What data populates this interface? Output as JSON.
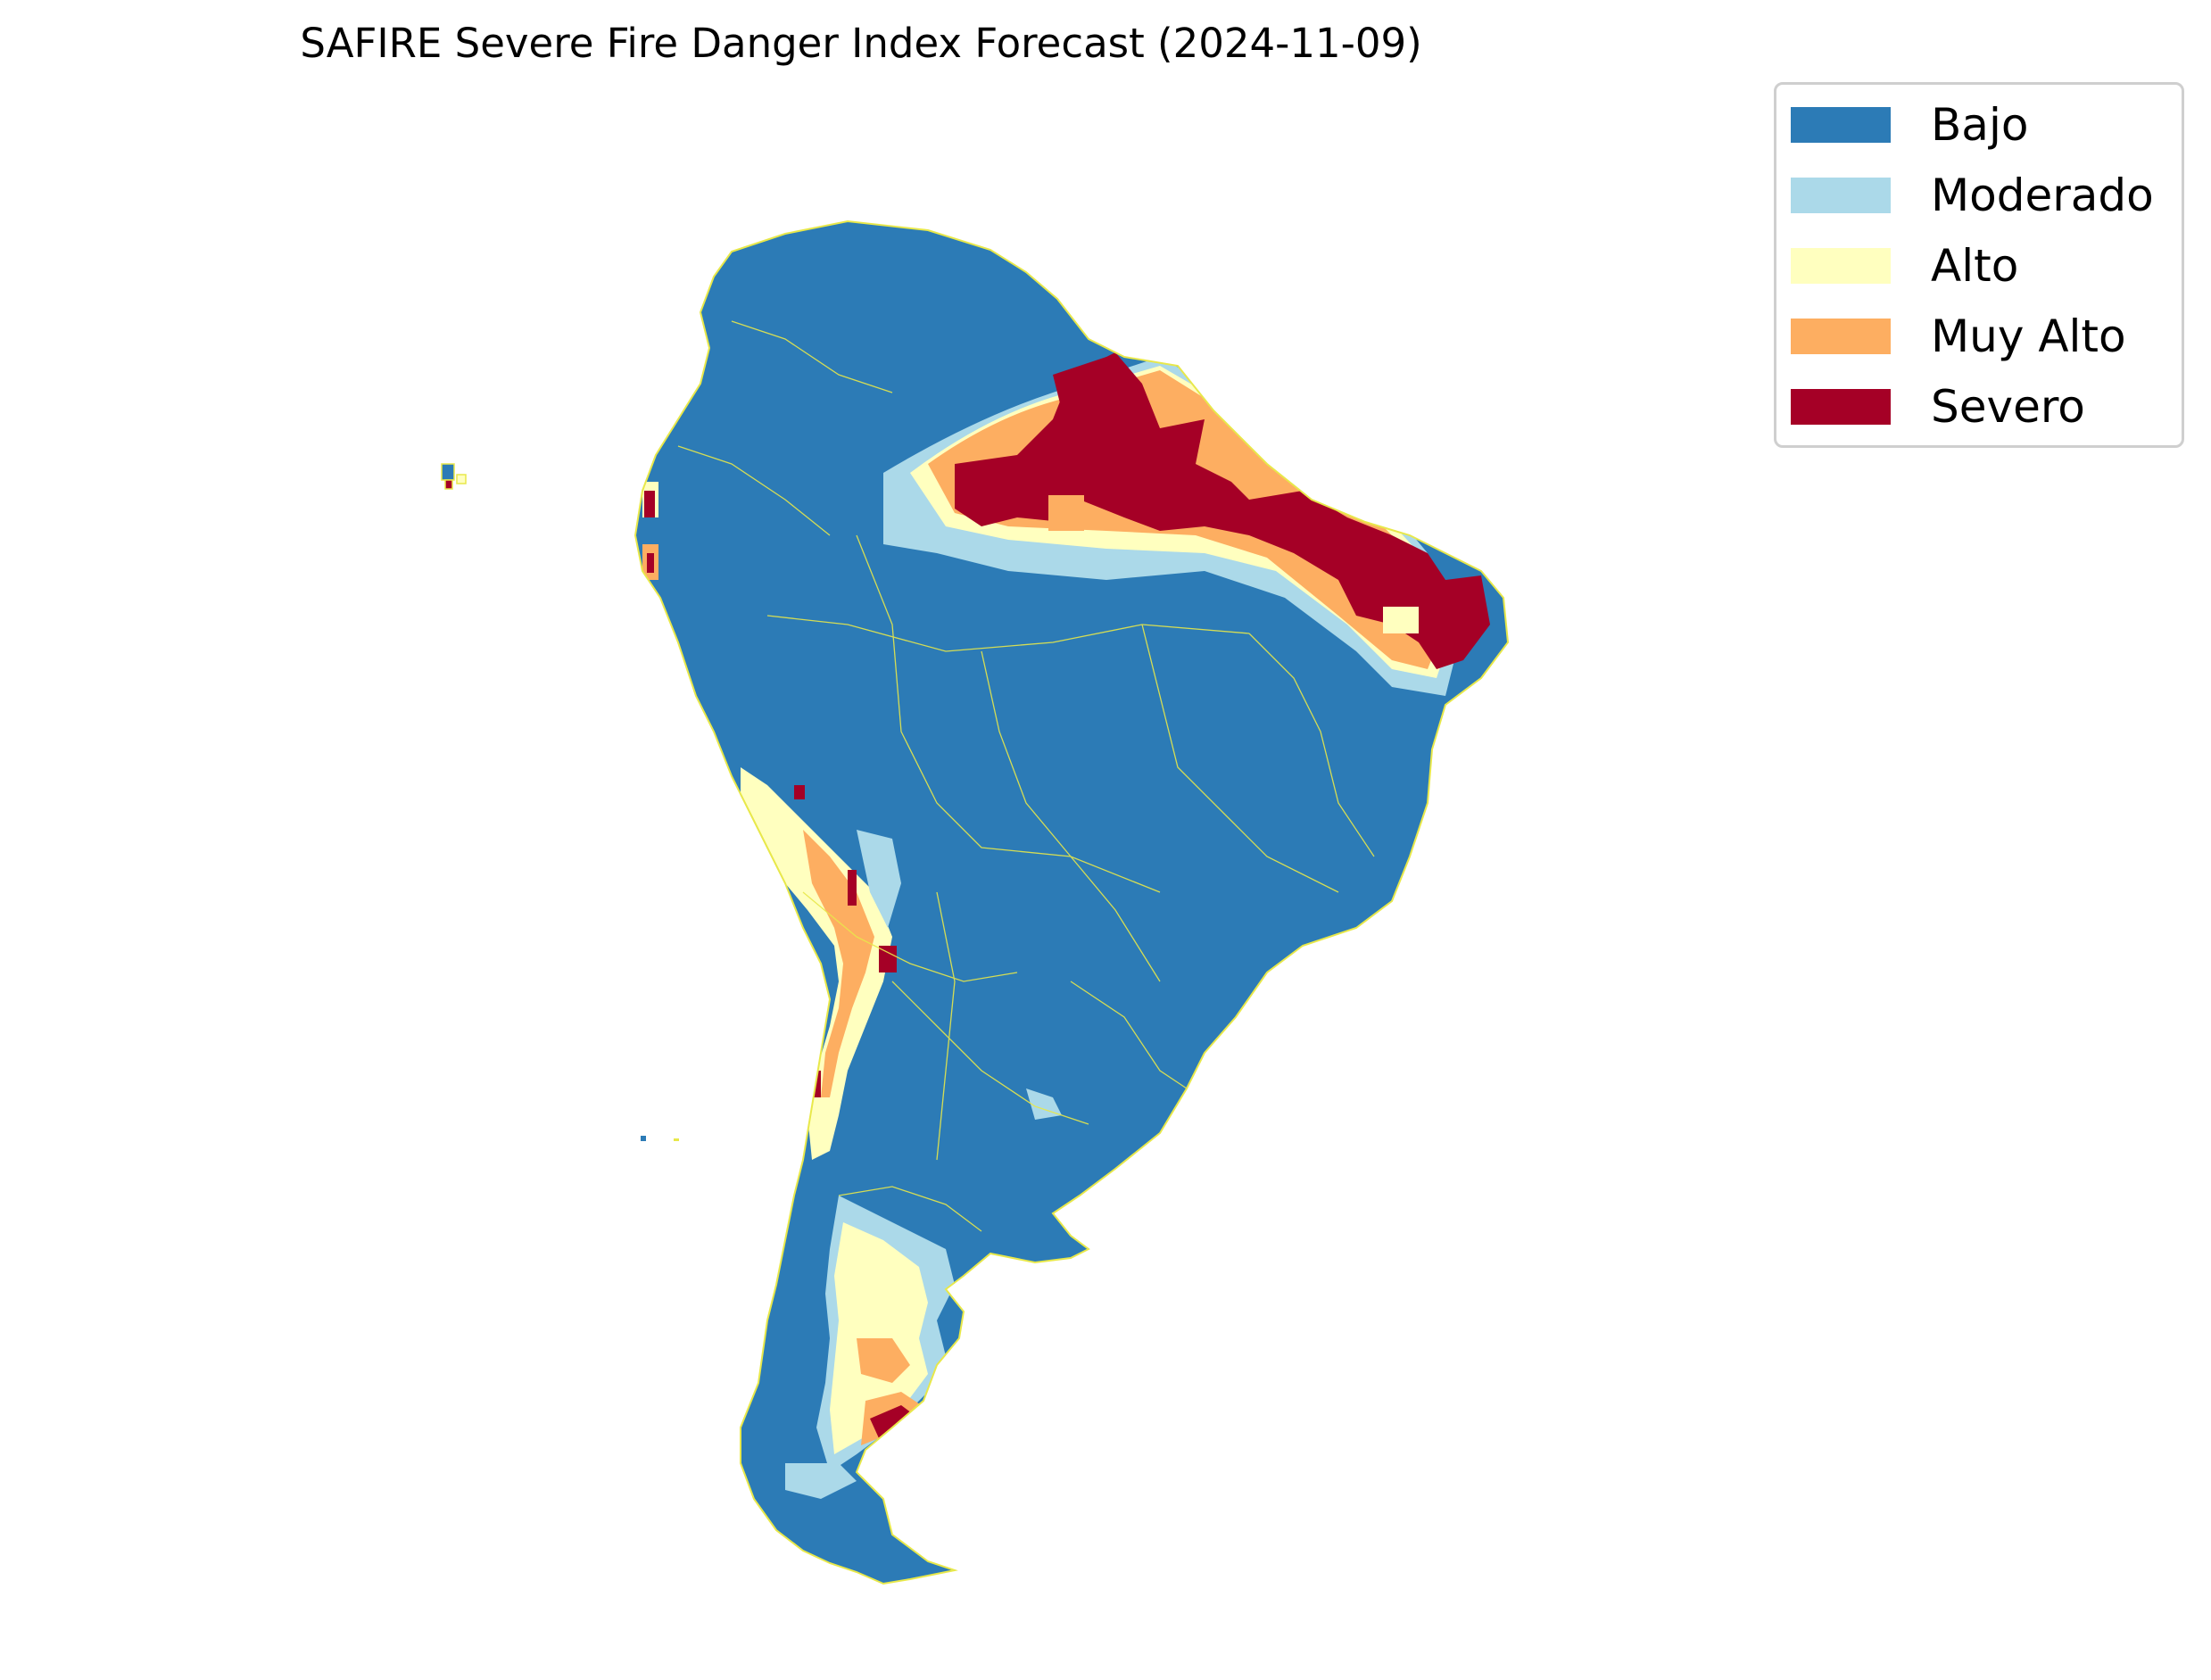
{
  "title": "SAFIRE Severe Fire Danger Index Forecast (2024-11-09)",
  "legend": {
    "position": "upper-right, outside plot",
    "items": [
      {
        "label": "Bajo",
        "color": "#2c7bb6"
      },
      {
        "label": "Moderado",
        "color": "#abd9e9"
      },
      {
        "label": "Alto",
        "color": "#ffffbf"
      },
      {
        "label": "Muy Alto",
        "color": "#fdae61"
      },
      {
        "label": "Severo",
        "color": "#a50026"
      }
    ]
  },
  "map": {
    "region": "South America",
    "boundary_color": "#e8e84a",
    "background": "#ffffff"
  }
}
